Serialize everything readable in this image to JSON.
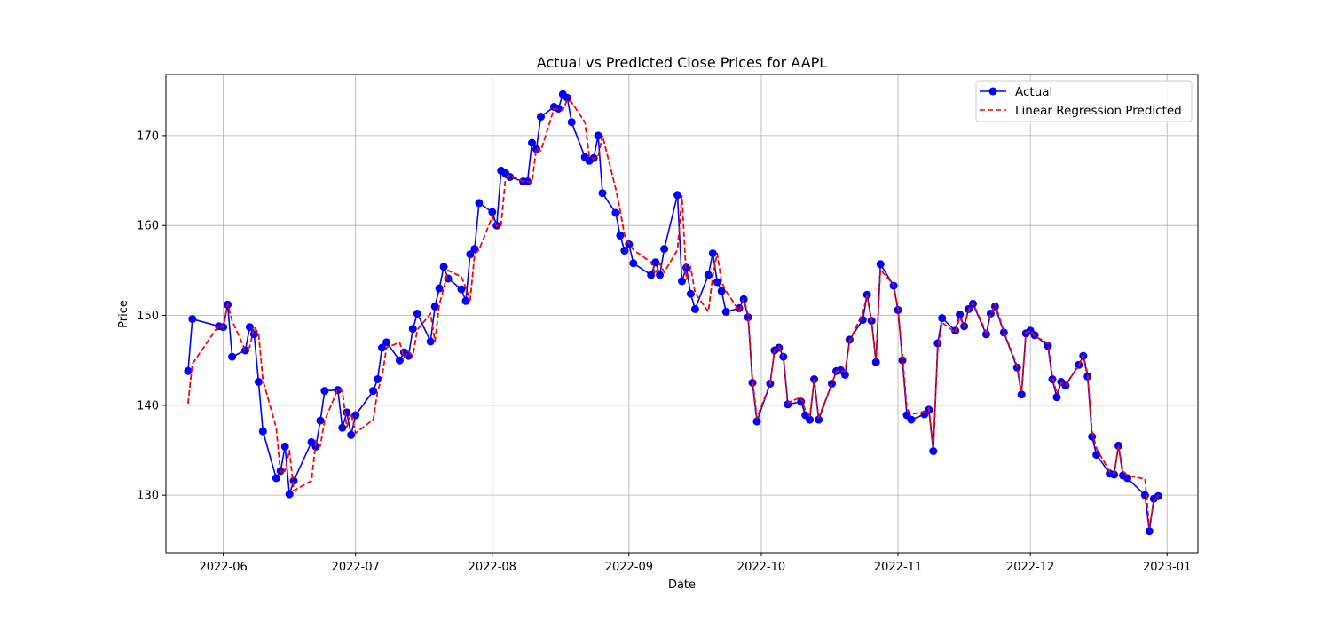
{
  "chart_data": {
    "type": "line",
    "title": "Actual vs Predicted Close Prices for AAPL",
    "xlabel": "Date",
    "ylabel": "Price",
    "xlim": [
      "2022-05-19",
      "2023-01-08"
    ],
    "ylim": [
      123.6,
      176.8
    ],
    "x_ticks": [
      "2022-06-01",
      "2022-07-01",
      "2022-08-01",
      "2022-09-01",
      "2022-10-01",
      "2022-11-01",
      "2022-12-01",
      "2023-01-01"
    ],
    "x_tick_labels": [
      "2022-06",
      "2022-07",
      "2022-08",
      "2022-09",
      "2022-10",
      "2022-11",
      "2022-12",
      "2023-01"
    ],
    "y_ticks": [
      130,
      140,
      150,
      160,
      170
    ],
    "grid": true,
    "legend_position": "top-right",
    "x": [
      "2022-05-24",
      "2022-05-25",
      "2022-05-31",
      "2022-06-01",
      "2022-06-02",
      "2022-06-03",
      "2022-06-06",
      "2022-06-07",
      "2022-06-08",
      "2022-06-09",
      "2022-06-10",
      "2022-06-13",
      "2022-06-14",
      "2022-06-15",
      "2022-06-16",
      "2022-06-17",
      "2022-06-21",
      "2022-06-22",
      "2022-06-23",
      "2022-06-24",
      "2022-06-27",
      "2022-06-28",
      "2022-06-29",
      "2022-06-30",
      "2022-07-01",
      "2022-07-05",
      "2022-07-06",
      "2022-07-07",
      "2022-07-08",
      "2022-07-11",
      "2022-07-12",
      "2022-07-13",
      "2022-07-14",
      "2022-07-15",
      "2022-07-18",
      "2022-07-19",
      "2022-07-20",
      "2022-07-21",
      "2022-07-22",
      "2022-07-25",
      "2022-07-26",
      "2022-07-27",
      "2022-07-28",
      "2022-07-29",
      "2022-08-01",
      "2022-08-02",
      "2022-08-03",
      "2022-08-04",
      "2022-08-05",
      "2022-08-08",
      "2022-08-09",
      "2022-08-10",
      "2022-08-11",
      "2022-08-12",
      "2022-08-15",
      "2022-08-16",
      "2022-08-17",
      "2022-08-18",
      "2022-08-19",
      "2022-08-22",
      "2022-08-23",
      "2022-08-24",
      "2022-08-25",
      "2022-08-26",
      "2022-08-29",
      "2022-08-30",
      "2022-08-31",
      "2022-09-01",
      "2022-09-02",
      "2022-09-06",
      "2022-09-07",
      "2022-09-08",
      "2022-09-09",
      "2022-09-12",
      "2022-09-13",
      "2022-09-14",
      "2022-09-15",
      "2022-09-16",
      "2022-09-19",
      "2022-09-20",
      "2022-09-21",
      "2022-09-22",
      "2022-09-23",
      "2022-09-26",
      "2022-09-27",
      "2022-09-28",
      "2022-09-29",
      "2022-09-30",
      "2022-10-03",
      "2022-10-04",
      "2022-10-05",
      "2022-10-06",
      "2022-10-07",
      "2022-10-10",
      "2022-10-11",
      "2022-10-12",
      "2022-10-13",
      "2022-10-14",
      "2022-10-17",
      "2022-10-18",
      "2022-10-19",
      "2022-10-20",
      "2022-10-21",
      "2022-10-24",
      "2022-10-25",
      "2022-10-26",
      "2022-10-27",
      "2022-10-28",
      "2022-10-31",
      "2022-11-01",
      "2022-11-02",
      "2022-11-03",
      "2022-11-04",
      "2022-11-07",
      "2022-11-08",
      "2022-11-09",
      "2022-11-10",
      "2022-11-11",
      "2022-11-14",
      "2022-11-15",
      "2022-11-16",
      "2022-11-17",
      "2022-11-18",
      "2022-11-21",
      "2022-11-22",
      "2022-11-23",
      "2022-11-25",
      "2022-11-28",
      "2022-11-29",
      "2022-11-30",
      "2022-12-01",
      "2022-12-02",
      "2022-12-05",
      "2022-12-06",
      "2022-12-07",
      "2022-12-08",
      "2022-12-09",
      "2022-12-12",
      "2022-12-13",
      "2022-12-14",
      "2022-12-15",
      "2022-12-16",
      "2022-12-19",
      "2022-12-20",
      "2022-12-21",
      "2022-12-22",
      "2022-12-23",
      "2022-12-27",
      "2022-12-28",
      "2022-12-29",
      "2022-12-30"
    ],
    "series": [
      {
        "name": "Actual",
        "color": "#0000ff",
        "style": "solid-with-markers",
        "values": [
          143.8,
          149.6,
          148.8,
          148.7,
          151.2,
          145.4,
          146.1,
          148.7,
          147.9,
          142.6,
          137.1,
          131.9,
          132.7,
          135.4,
          130.1,
          131.6,
          135.9,
          135.4,
          138.3,
          141.6,
          141.7,
          137.5,
          139.2,
          136.7,
          138.9,
          141.6,
          142.9,
          146.4,
          147.0,
          145.0,
          145.9,
          145.5,
          148.5,
          150.2,
          147.1,
          151.0,
          153.0,
          155.4,
          154.1,
          152.9,
          151.6,
          156.8,
          157.4,
          162.5,
          161.5,
          160.0,
          166.1,
          165.8,
          165.4,
          164.9,
          164.9,
          169.2,
          168.5,
          172.1,
          173.2,
          173.0,
          174.6,
          174.2,
          171.5,
          167.6,
          167.2,
          167.5,
          170.0,
          163.6,
          161.4,
          158.9,
          157.2,
          157.9,
          155.8,
          154.5,
          155.9,
          154.5,
          157.4,
          163.4,
          153.8,
          155.3,
          152.4,
          150.7,
          154.5,
          156.9,
          153.7,
          152.7,
          150.4,
          150.8,
          151.8,
          149.8,
          142.5,
          138.2,
          142.4,
          146.1,
          146.4,
          145.4,
          140.1,
          140.4,
          138.9,
          138.4,
          142.9,
          138.4,
          142.4,
          143.8,
          143.9,
          143.4,
          147.3,
          149.5,
          152.3,
          149.4,
          144.8,
          155.7,
          153.3,
          150.6,
          145.0,
          138.9,
          138.4,
          139.0,
          139.5,
          134.9,
          146.9,
          149.7,
          148.3,
          150.1,
          148.8,
          150.7,
          151.3,
          147.9,
          150.2,
          151.0,
          148.1,
          144.2,
          141.2,
          148.0,
          148.3,
          147.8,
          146.6,
          142.9,
          140.9,
          142.6,
          142.2,
          144.5,
          145.5,
          143.2,
          136.5,
          134.5,
          132.4,
          132.3,
          135.5,
          132.2,
          131.9,
          130.0,
          126.0,
          129.6,
          129.9
        ]
      },
      {
        "name": "Linear Regression Predicted",
        "color": "#ff0000",
        "style": "dashed",
        "values": [
          140.2,
          144.6,
          148.9,
          148.7,
          151.3,
          149.4,
          146.1,
          146.5,
          148.7,
          148.0,
          142.8,
          137.5,
          132.4,
          132.7,
          135.0,
          130.5,
          131.6,
          136.0,
          135.5,
          138.3,
          141.8,
          141.6,
          137.6,
          139.1,
          136.9,
          138.4,
          141.6,
          143.1,
          146.4,
          147.0,
          145.3,
          145.9,
          145.5,
          148.4,
          150.2,
          147.1,
          151.2,
          153.0,
          155.0,
          154.3,
          153.1,
          151.7,
          156.8,
          157.3,
          161.0,
          159.9,
          160.0,
          165.3,
          165.6,
          164.9,
          164.9,
          164.8,
          168.6,
          168.3,
          173.0,
          172.9,
          172.8,
          174.0,
          173.7,
          171.5,
          167.7,
          167.4,
          167.7,
          170.0,
          164.1,
          161.7,
          158.9,
          158.0,
          157.3,
          155.9,
          154.6,
          155.8,
          154.8,
          157.3,
          163.3,
          154.0,
          155.3,
          152.5,
          150.4,
          154.4,
          156.9,
          153.7,
          152.7,
          150.5,
          151.8,
          150.1,
          142.9,
          138.6,
          142.4,
          146.1,
          146.5,
          145.5,
          140.3,
          140.9,
          139.4,
          138.8,
          142.9,
          138.6,
          142.4,
          143.8,
          143.8,
          143.8,
          147.1,
          150.3,
          152.2,
          149.3,
          145.1,
          155.1,
          153.4,
          150.7,
          145.5,
          139.6,
          139.0,
          139.3,
          139.7,
          135.3,
          146.2,
          149.2,
          148.1,
          149.8,
          148.8,
          150.6,
          151.4,
          148.1,
          150.1,
          151.3,
          148.2,
          144.4,
          141.5,
          148.1,
          148.3,
          147.7,
          146.9,
          143.2,
          141.3,
          142.5,
          142.3,
          144.4,
          145.6,
          143.5,
          137.1,
          135.2,
          132.6,
          132.4,
          135.5,
          132.7,
          132.2,
          131.8,
          126.4,
          129.3,
          130.0
        ]
      }
    ]
  }
}
